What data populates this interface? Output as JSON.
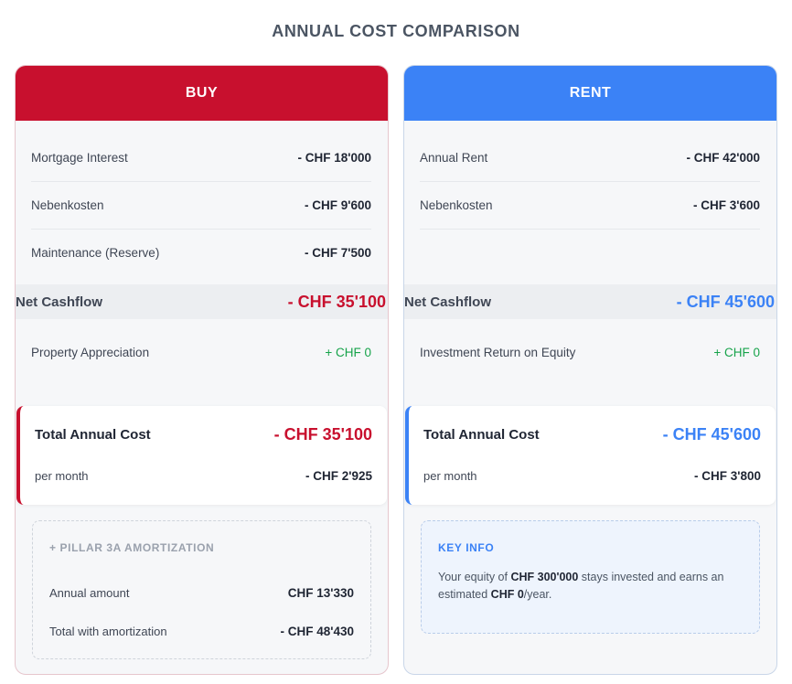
{
  "title": "ANNUAL COST COMPARISON",
  "buy": {
    "header": "BUY",
    "rows": [
      {
        "label": "Mortgage Interest",
        "value": "- CHF 18'000"
      },
      {
        "label": "Nebenkosten",
        "value": "- CHF 9'600"
      },
      {
        "label": "Maintenance (Reserve)",
        "value": "- CHF 7'500"
      }
    ],
    "net_label": "Net Cashflow",
    "net_value": "- CHF 35'100",
    "appreciation_label": "Property Appreciation",
    "appreciation_value": "+ CHF 0",
    "total_label": "Total Annual Cost",
    "total_value": "- CHF 35'100",
    "per_month_label": "per month",
    "per_month_value": "- CHF 2'925",
    "pillar": {
      "title": "+ PILLAR 3A AMORTIZATION",
      "annual_label": "Annual amount",
      "annual_value": "CHF 13'330",
      "total_label": "Total with amortization",
      "total_value": "- CHF 48'430"
    }
  },
  "rent": {
    "header": "RENT",
    "rows": [
      {
        "label": "Annual Rent",
        "value": "- CHF 42'000"
      },
      {
        "label": "Nebenkosten",
        "value": "- CHF 3'600"
      }
    ],
    "net_label": "Net Cashflow",
    "net_value": "- CHF 45'600",
    "investment_label": "Investment Return on Equity",
    "investment_value": "+ CHF 0",
    "total_label": "Total Annual Cost",
    "total_value": "- CHF 45'600",
    "per_month_label": "per month",
    "per_month_value": "- CHF 3'800",
    "key_info": {
      "title": "KEY INFO",
      "text_1": "Your equity of ",
      "equity": "CHF 300'000",
      "text_2": " stays invested and earns an estimated ",
      "estimate": "CHF 0",
      "text_3": "/year."
    }
  },
  "colors": {
    "buy_accent": "#c8102e",
    "rent_accent": "#3b82f6",
    "gain": "#16a34a"
  }
}
